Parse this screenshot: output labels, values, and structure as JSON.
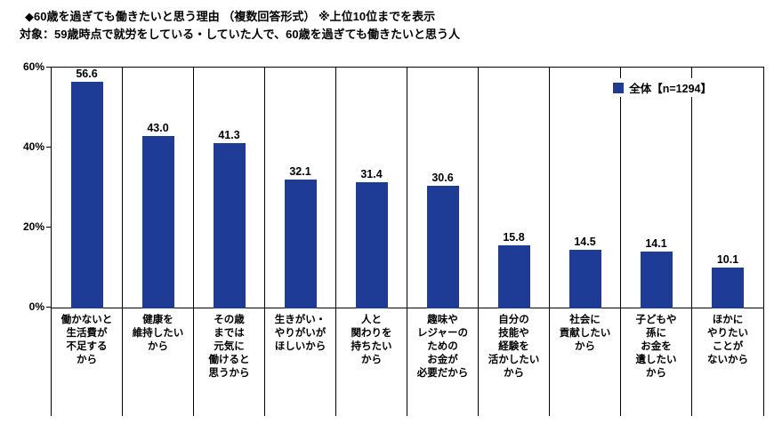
{
  "title": "◆60歳を過ぎても働きたいと思う理由 （複数回答形式） ※上位10位までを表示",
  "subtitle": "対象：59歳時点で就労をしている・していた人で、60歳を過ぎても働きたいと思う人",
  "legend": {
    "label": "全体【n=1294】",
    "color": "#1e3c96"
  },
  "y_axis": {
    "ticks": [
      "60%",
      "40%",
      "20%",
      "0%"
    ]
  },
  "chart_data": {
    "type": "bar",
    "title": "◆60歳を過ぎても働きたいと思う理由 （複数回答形式） ※上位10位までを表示",
    "subtitle": "対象：59歳時点で就労をしている・していた人で、60歳を過ぎても働きたいと思う人",
    "legend": "全体【n=1294】",
    "legend_position": "top-right-inside",
    "bar_color": "#1e3c96",
    "grid": "vertical-category-separators",
    "ylim": [
      0,
      60
    ],
    "ylabel": "",
    "xlabel": "",
    "y_tick_labels": [
      "0%",
      "20%",
      "40%",
      "60%"
    ],
    "categories": [
      "働かないと生活費が不足するから",
      "健康を維持したいから",
      "その歳までは元気に働けると思うから",
      "生きがい・やりがいがほしいから",
      "人と関わりを持ちたいから",
      "趣味やレジャーのためのお金が必要だから",
      "自分の技能や経験を活かしたいから",
      "社会に貢献したいから",
      "子どもや孫にお金を遺したいから",
      "ほかにやりたいことがないから"
    ],
    "category_lines": [
      [
        "働かないと",
        "生活費が",
        "不足する",
        "から"
      ],
      [
        "健康を",
        "維持したい",
        "から"
      ],
      [
        "その歳",
        "までは",
        "元気に",
        "働けると",
        "思うから"
      ],
      [
        "生きがい・",
        "やりがいが",
        "ほしいから"
      ],
      [
        "人と",
        "関わりを",
        "持ちたい",
        "から"
      ],
      [
        "趣味や",
        "レジャーの",
        "ための",
        "お金が",
        "必要だから"
      ],
      [
        "自分の",
        "技能や",
        "経験を",
        "活かしたい",
        "から"
      ],
      [
        "社会に",
        "貢献したい",
        "から"
      ],
      [
        "子どもや",
        "孫に",
        "お金を",
        "遺したい",
        "から"
      ],
      [
        "ほかに",
        "やりたい",
        "ことが",
        "ないから"
      ]
    ],
    "values": [
      56.6,
      43.0,
      41.3,
      32.1,
      31.4,
      30.6,
      15.8,
      14.5,
      14.1,
      10.1
    ]
  }
}
